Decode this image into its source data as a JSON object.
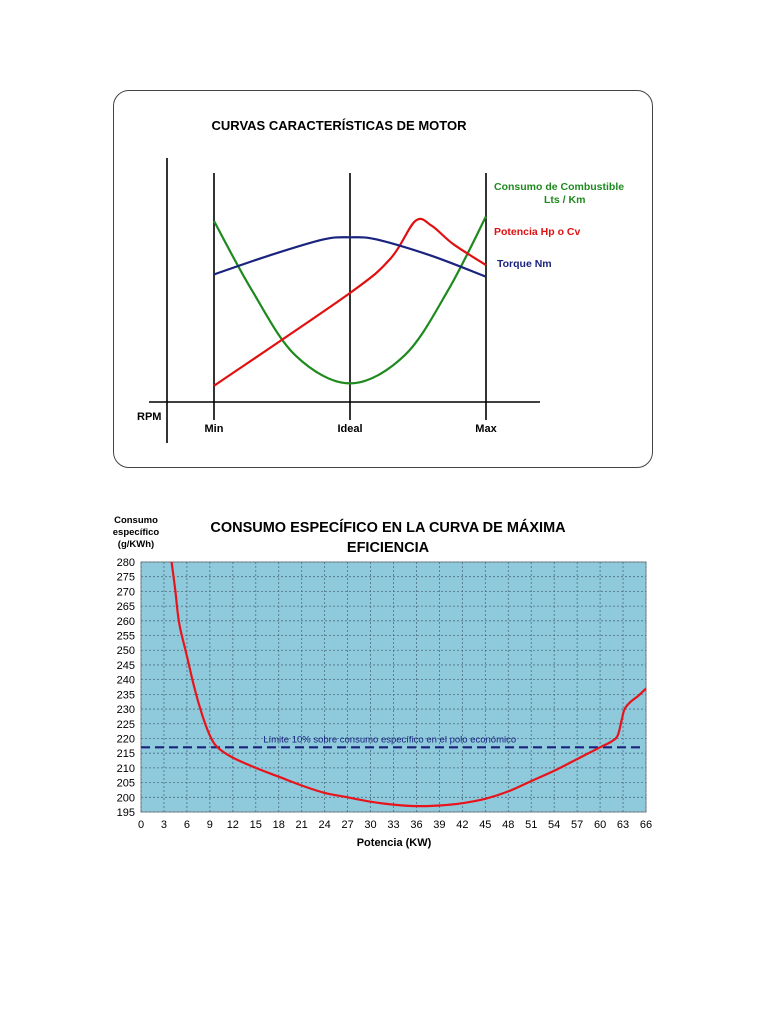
{
  "chart_data": [
    {
      "type": "line",
      "title": "CURVAS CARACTERÍSTICAS  DE MOTOR",
      "xlabel": "RPM",
      "categories": [
        "Min",
        "Ideal",
        "Max"
      ],
      "series": [
        {
          "name": "Consumo de Combustible Lts / Km",
          "label_lines": [
            "Consumo de Combustible",
            "Lts / Km"
          ],
          "color": "#1e8a1e",
          "points": [
            [
              0,
              0.78
            ],
            [
              0.14,
              0.48
            ],
            [
              0.3,
              0.2
            ],
            [
              0.5,
              0.08
            ],
            [
              0.7,
              0.2
            ],
            [
              0.86,
              0.48
            ],
            [
              1,
              0.8
            ]
          ]
        },
        {
          "name": "Potencia  Hp  o Cv",
          "label_lines": [
            "Potencia  Hp  o Cv"
          ],
          "color": "#e01010",
          "points": [
            [
              0,
              0.07
            ],
            [
              0.5,
              0.47
            ],
            [
              0.65,
              0.62
            ],
            [
              0.74,
              0.78
            ],
            [
              0.8,
              0.76
            ],
            [
              0.88,
              0.68
            ],
            [
              1,
              0.59
            ]
          ]
        },
        {
          "name": "Torque   Nm",
          "label_lines": [
            "Torque   Nm"
          ],
          "color": "#1a237e",
          "points": [
            [
              0,
              0.55
            ],
            [
              0.2,
              0.63
            ],
            [
              0.4,
              0.7
            ],
            [
              0.5,
              0.71
            ],
            [
              0.6,
              0.7
            ],
            [
              0.8,
              0.63
            ],
            [
              1,
              0.54
            ]
          ]
        }
      ]
    },
    {
      "type": "line",
      "title_lines": [
        "CONSUMO ESPECÍFICO EN LA CURVA DE MÁXIMA",
        "EFICIENCIA"
      ],
      "ylabel_lines": [
        "Consumo",
        "específico",
        "(g/KWh)"
      ],
      "xlabel": "Potencia (KW)",
      "xlim": [
        0,
        66
      ],
      "ylim": [
        195,
        280
      ],
      "xticks": [
        0,
        3,
        6,
        9,
        12,
        15,
        18,
        21,
        24,
        27,
        30,
        33,
        36,
        39,
        42,
        45,
        48,
        51,
        54,
        57,
        60,
        63,
        66
      ],
      "yticks": [
        195,
        200,
        205,
        210,
        215,
        220,
        225,
        230,
        235,
        240,
        245,
        250,
        255,
        260,
        265,
        270,
        275,
        280
      ],
      "grid": true,
      "background": "#8ec9dc",
      "series": [
        {
          "name": "Consumo específico",
          "color": "#e8141c",
          "points": [
            [
              4,
              280
            ],
            [
              4.5,
              270
            ],
            [
              5,
              259
            ],
            [
              6,
              248
            ],
            [
              7,
              237
            ],
            [
              8,
              228
            ],
            [
              9,
              221
            ],
            [
              10,
              217
            ],
            [
              12,
              213.5
            ],
            [
              15,
              210
            ],
            [
              18,
              207
            ],
            [
              21,
              204
            ],
            [
              24,
              201.5
            ],
            [
              27,
              200
            ],
            [
              30,
              198.5
            ],
            [
              33,
              197.5
            ],
            [
              36,
              197
            ],
            [
              39,
              197.2
            ],
            [
              42,
              198
            ],
            [
              45,
              199.5
            ],
            [
              48,
              202
            ],
            [
              51,
              205.5
            ],
            [
              54,
              209
            ],
            [
              57,
              213
            ],
            [
              60,
              217
            ],
            [
              61.5,
              219
            ],
            [
              62.3,
              221
            ],
            [
              62.8,
              226
            ],
            [
              63.2,
              230
            ],
            [
              64,
              232.5
            ],
            [
              65,
              234.5
            ],
            [
              66,
              237
            ]
          ]
        }
      ],
      "annotation": {
        "text": "Límite 10% sobre consumo específico en el polo económico",
        "y": 217,
        "color": "#1a237e"
      }
    }
  ]
}
